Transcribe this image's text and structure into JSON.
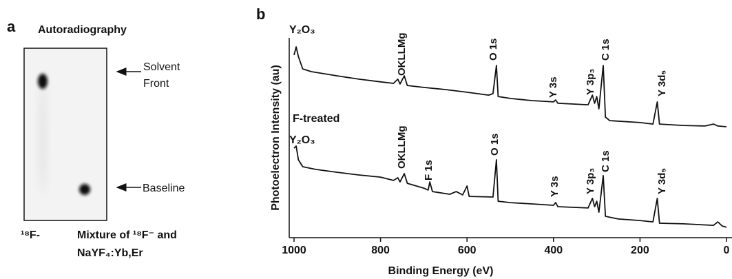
{
  "panel_a": {
    "label": "a",
    "title": "Autoradiography",
    "solvent_front": [
      "Solvent",
      "Front"
    ],
    "baseline": "Baseline",
    "lane1": "¹⁸F-",
    "lane2": [
      "Mixture of ¹⁸F⁻ and",
      "NaYF₄:Yb,Er"
    ]
  },
  "chart_data": {
    "type": "line",
    "panel_label": "b",
    "xlabel": "Binding Energy (eV)",
    "ylabel": "Photoelectron Intensity (au)",
    "xlim": [
      1000,
      0
    ],
    "xticks": [
      1000,
      800,
      600,
      400,
      200,
      0
    ],
    "ylim": [
      0,
      100
    ],
    "series": [
      {
        "name": "Y₂O₃",
        "color": "#111111",
        "x": [
          1000,
          995,
          990,
          980,
          960,
          900,
          850,
          800,
          770,
          760,
          755,
          745,
          738,
          700,
          650,
          600,
          550,
          540,
          532,
          528,
          500,
          450,
          400,
          395,
          390,
          320,
          310,
          305,
          300,
          295,
          285,
          280,
          270,
          200,
          170,
          160,
          155,
          100,
          50,
          30,
          20,
          0
        ],
        "values": [
          92.9,
          97.1,
          92.1,
          85.7,
          84.3,
          82.1,
          80.4,
          79.0,
          78.2,
          80.4,
          77.9,
          82.1,
          77.1,
          76.1,
          75.0,
          73.6,
          72.1,
          72.9,
          87.5,
          71.4,
          70.4,
          69.3,
          68.6,
          69.6,
          67.9,
          67.1,
          72.1,
          67.9,
          71.4,
          65.0,
          87.5,
          60.7,
          58.9,
          57.9,
          57.1,
          68.6,
          57.1,
          56.4,
          56.1,
          57.1,
          56.1,
          55.7
        ],
        "annotations": [
          {
            "text": "OKLLMg",
            "color": "#111111"
          },
          {
            "text": "O 1s",
            "color": "#111111"
          },
          {
            "text": "Y 3s",
            "color": "#111111"
          },
          {
            "text": "Y 3p₃",
            "color": "#111111"
          },
          {
            "text": "C 1s",
            "color": "#111111"
          },
          {
            "text": "Y 3d₅",
            "color": "#111111"
          }
        ]
      },
      {
        "name": "F-treated",
        "sublabel": "Y₂O₃",
        "color": "#111111",
        "x": [
          1000,
          995,
          990,
          980,
          950,
          900,
          850,
          800,
          770,
          760,
          755,
          745,
          738,
          700,
          690,
          686,
          680,
          640,
          625,
          610,
          600,
          595,
          540,
          532,
          528,
          500,
          450,
          400,
          395,
          390,
          320,
          310,
          305,
          300,
          295,
          285,
          280,
          250,
          200,
          170,
          160,
          155,
          100,
          30,
          20,
          10,
          0
        ],
        "values": [
          44.6,
          45.7,
          38.6,
          35.0,
          33.6,
          32.1,
          30.7,
          29.6,
          27.9,
          29.3,
          27.1,
          31.4,
          26.4,
          23.9,
          22.9,
          27.1,
          22.1,
          20.7,
          22.1,
          20.4,
          25.0,
          19.6,
          19.3,
          38.6,
          17.1,
          16.4,
          15.7,
          15.0,
          16.4,
          14.3,
          13.6,
          18.6,
          14.3,
          17.1,
          11.4,
          30.4,
          9.3,
          7.9,
          7.1,
          6.4,
          18.6,
          5.7,
          5.4,
          4.6,
          6.4,
          4.3,
          3.6
        ],
        "annotations": [
          {
            "text": "OKLLMg",
            "color": "#111111"
          },
          {
            "text": "F 1s",
            "color": "#e0211b"
          },
          {
            "text": "O 1s",
            "color": "#111111"
          },
          {
            "text": "Y 3s",
            "color": "#111111"
          },
          {
            "text": "Y 3p₃",
            "color": "#111111"
          },
          {
            "text": "C 1s",
            "color": "#111111"
          },
          {
            "text": "Y 3d₅",
            "color": "#111111"
          }
        ]
      }
    ]
  }
}
